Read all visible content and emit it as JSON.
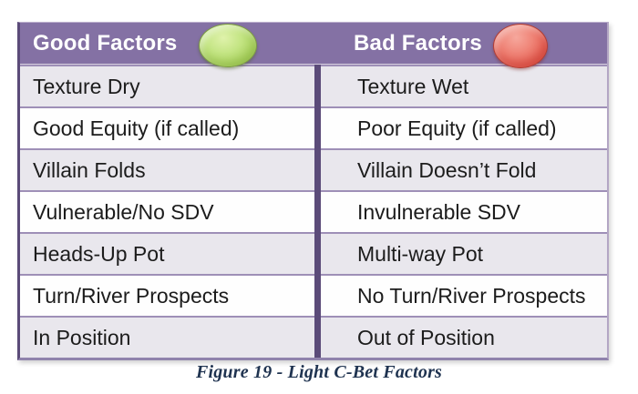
{
  "table": {
    "columns": [
      {
        "header": "Good Factors",
        "indicator": "green-circle",
        "rows": [
          "Texture Dry",
          "Good Equity (if called)",
          "Villain Folds",
          "Vulnerable/No SDV",
          "Heads-Up Pot",
          "Turn/River Prospects",
          "In Position"
        ]
      },
      {
        "header": "Bad Factors",
        "indicator": "red-circle",
        "rows": [
          "Texture Wet",
          "Poor Equity (if called)",
          "Villain Doesn’t Fold",
          "Invulnerable SDV",
          "Multi-way Pot",
          "No Turn/River Prospects",
          "Out of Position"
        ]
      }
    ]
  },
  "caption": "Figure 19 - Light C-Bet Factors",
  "colors": {
    "header_purple": "#8471a4",
    "divider_dark_purple": "#5b4b79",
    "row_divider_purple": "#9e8fb7",
    "shaded_row": "#e9e7ed",
    "plain_row": "#fefefe",
    "indicator_green": "#a9d25e",
    "indicator_red": "#e55a4e",
    "caption_navy": "#1f3350"
  }
}
